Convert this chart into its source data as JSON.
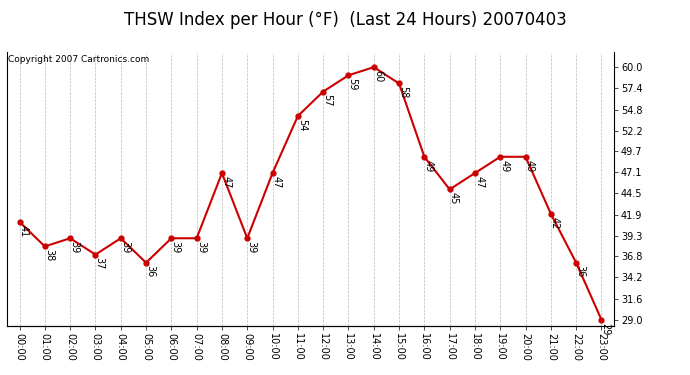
{
  "title": "THSW Index per Hour (°F)  (Last 24 Hours) 20070403",
  "copyright": "Copyright 2007 Cartronics.com",
  "hours": [
    0,
    1,
    2,
    3,
    4,
    5,
    6,
    7,
    8,
    9,
    10,
    11,
    12,
    13,
    14,
    15,
    16,
    17,
    18,
    19,
    20,
    21,
    22,
    23
  ],
  "values": [
    41,
    38,
    39,
    37,
    39,
    36,
    39,
    39,
    47,
    39,
    47,
    54,
    57,
    59,
    60,
    58,
    49,
    45,
    47,
    49,
    49,
    42,
    36,
    29
  ],
  "x_labels": [
    "00:00",
    "01:00",
    "02:00",
    "03:00",
    "04:00",
    "05:00",
    "06:00",
    "07:00",
    "08:00",
    "09:00",
    "10:00",
    "11:00",
    "12:00",
    "13:00",
    "14:00",
    "15:00",
    "16:00",
    "17:00",
    "18:00",
    "19:00",
    "20:00",
    "21:00",
    "22:00",
    "23:00"
  ],
  "y_ticks": [
    29.0,
    31.6,
    34.2,
    36.8,
    39.3,
    41.9,
    44.5,
    47.1,
    49.7,
    52.2,
    54.8,
    57.4,
    60.0
  ],
  "y_min": 28.2,
  "y_max": 61.8,
  "line_color": "#cc0000",
  "marker_color": "#cc0000",
  "grid_color": "#bbbbbb",
  "background_color": "#ffffff",
  "title_fontsize": 12,
  "label_fontsize": 7,
  "annotation_fontsize": 7,
  "copyright_fontsize": 6.5
}
